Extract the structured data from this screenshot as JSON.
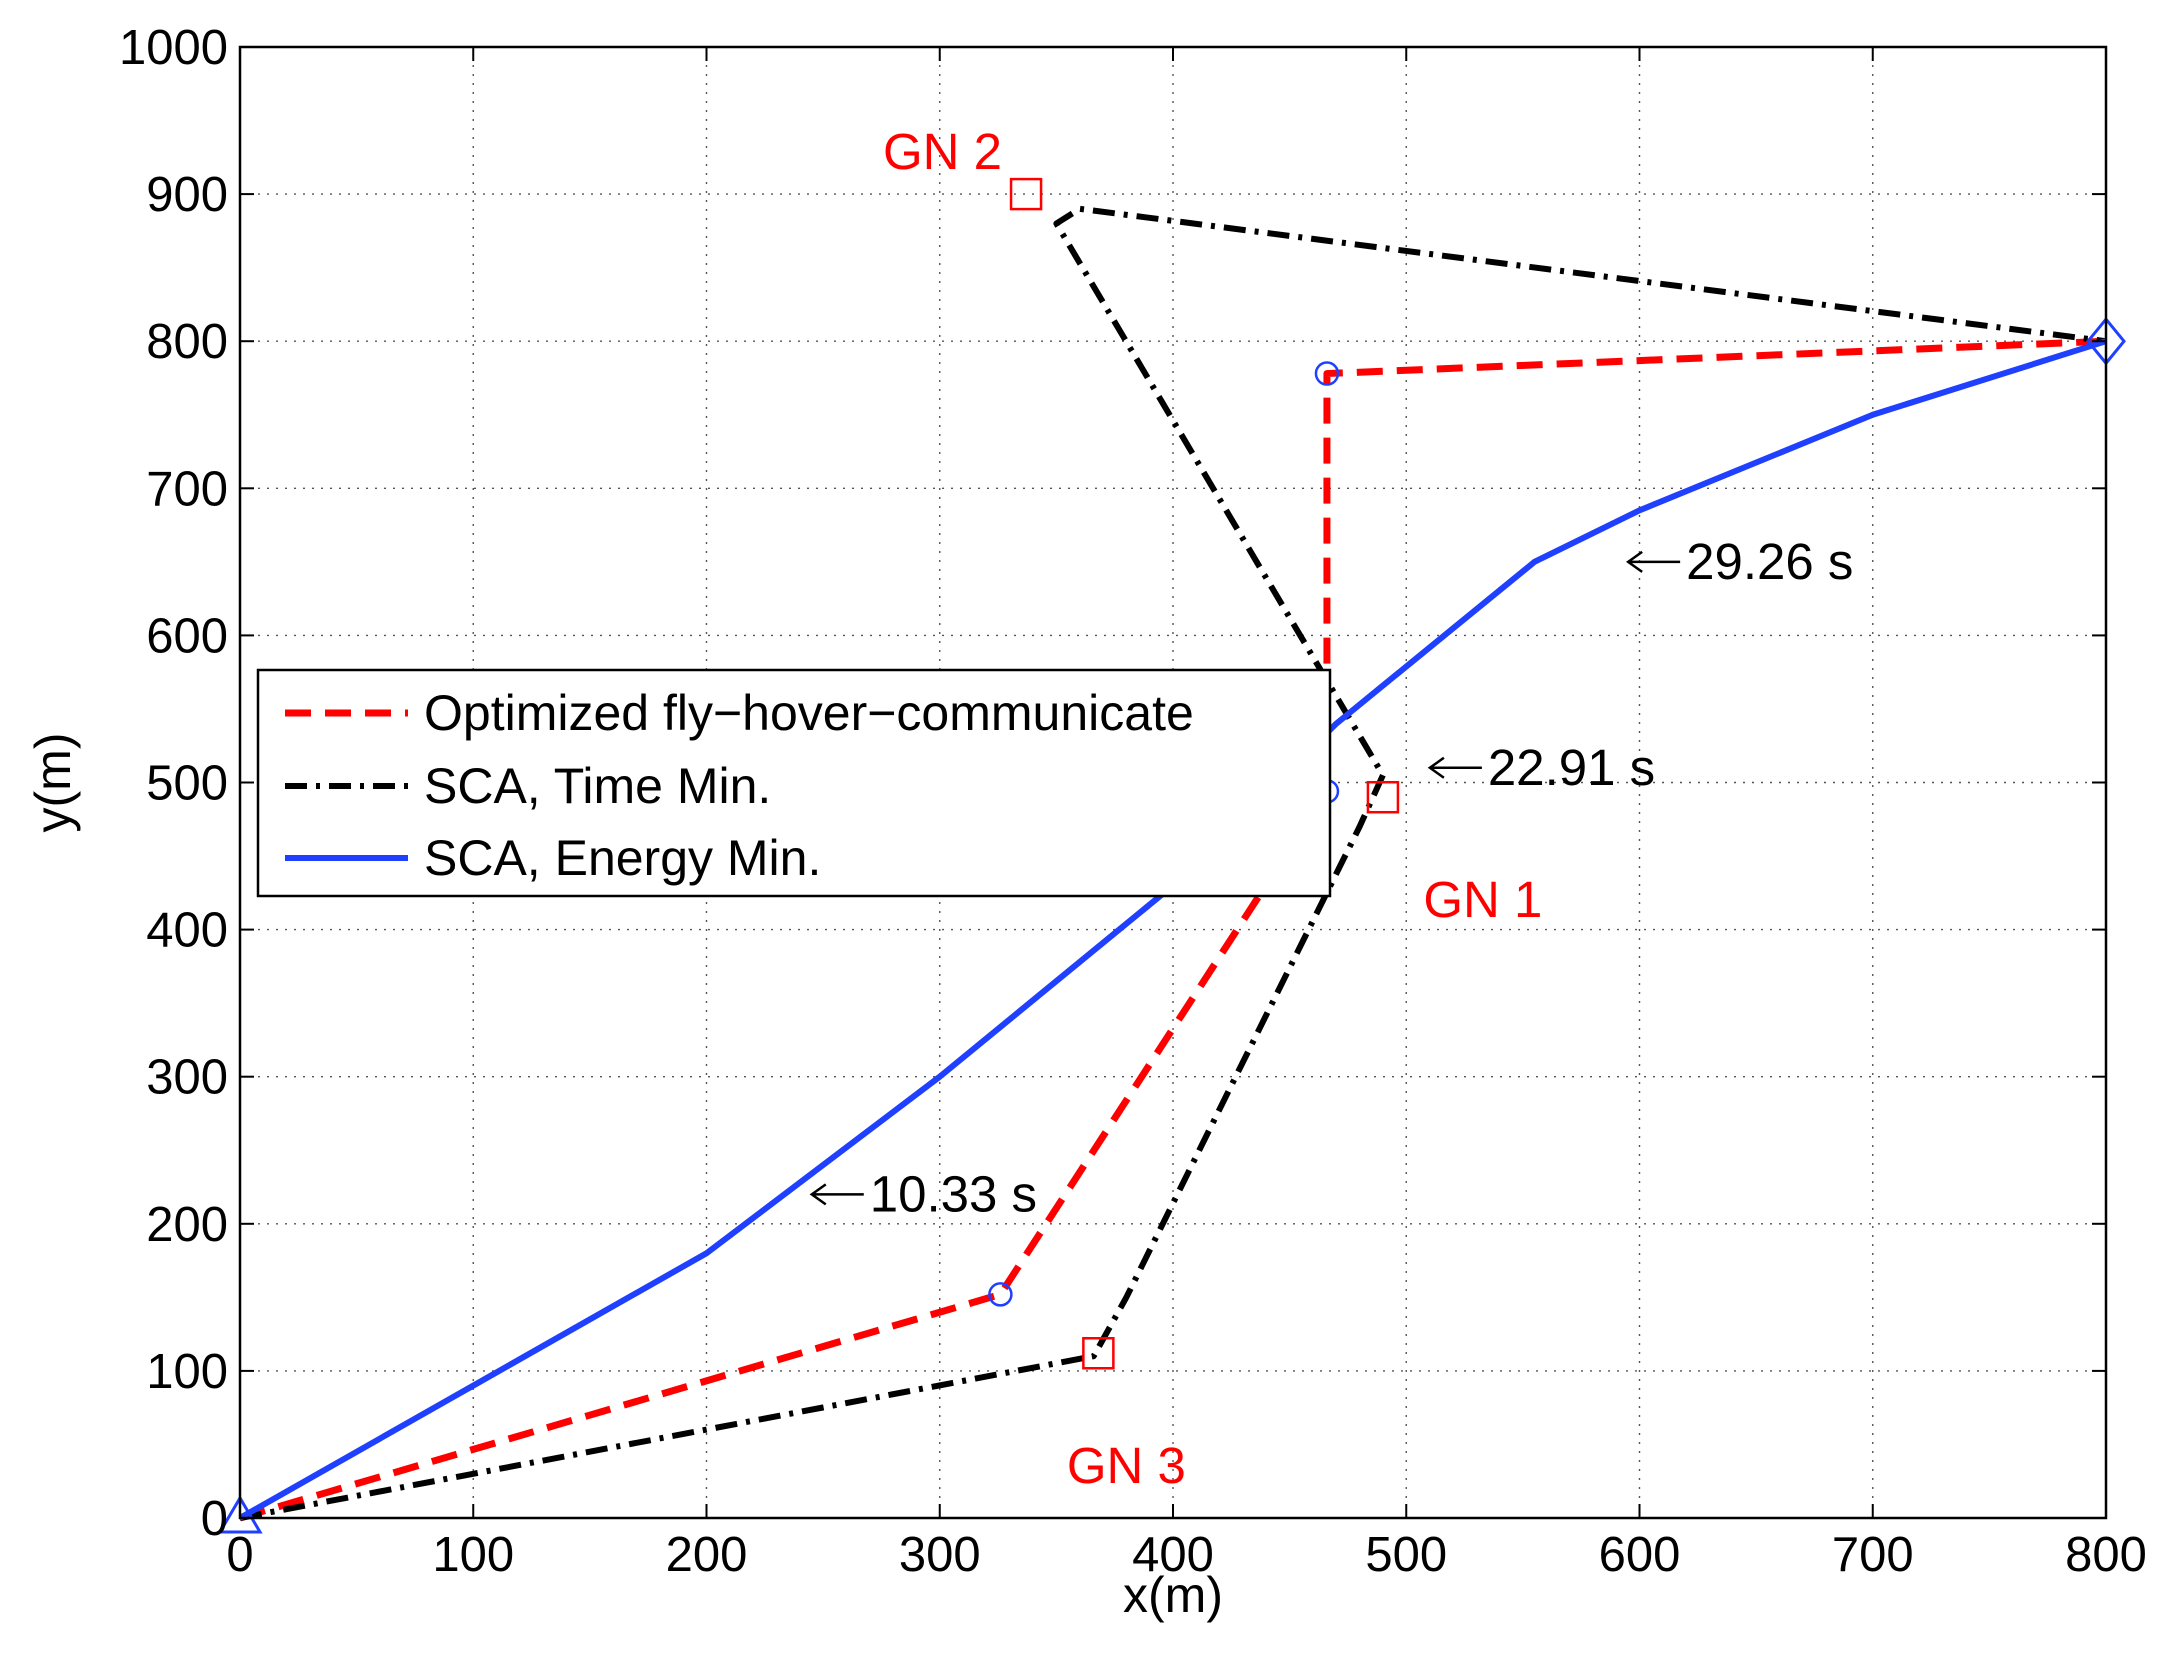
{
  "chart_data": {
    "type": "line",
    "xlabel": "x(m)",
    "ylabel": "y(m)",
    "xlim": [
      0,
      800
    ],
    "ylim": [
      0,
      1000
    ],
    "xticks": [
      0,
      100,
      200,
      300,
      400,
      500,
      600,
      700,
      800
    ],
    "yticks": [
      0,
      100,
      200,
      300,
      400,
      500,
      600,
      700,
      800,
      900,
      1000
    ],
    "grid": true,
    "legend_position": "center-left",
    "series": [
      {
        "name": "Optimized fly−hover−communicate",
        "color": "#ff0000",
        "style": "dashed",
        "x": [
          0,
          326,
          466,
          466,
          800
        ],
        "y": [
          0,
          152,
          494,
          778,
          800
        ]
      },
      {
        "name": "SCA, Time Min.",
        "color": "#000000",
        "style": "dashdot",
        "x": [
          0,
          366,
          380,
          480,
          490,
          350,
          360,
          800
        ],
        "y": [
          0,
          110,
          150,
          470,
          505,
          880,
          890,
          800
        ]
      },
      {
        "name": "SCA, Energy Min.",
        "color": "#2040ff",
        "style": "solid",
        "x": [
          0,
          100,
          200,
          300,
          400,
          470,
          555,
          600,
          700,
          800
        ],
        "y": [
          0,
          90,
          180,
          300,
          430,
          540,
          650,
          685,
          750,
          800
        ]
      }
    ],
    "ground_nodes": [
      {
        "label": "GN 1",
        "x": 490,
        "y": 490
      },
      {
        "label": "GN 2",
        "x": 337,
        "y": 900
      },
      {
        "label": "GN 3",
        "x": 368,
        "y": 112
      }
    ],
    "hover_points": [
      {
        "x": 326,
        "y": 152
      },
      {
        "x": 466,
        "y": 494
      },
      {
        "x": 466,
        "y": 778
      }
    ],
    "start_marker": {
      "shape": "triangle",
      "x": 0,
      "y": 0
    },
    "end_marker": {
      "shape": "diamond",
      "x": 800,
      "y": 800
    },
    "annotations": [
      {
        "text": "10.33 s",
        "x": 270,
        "y": 220
      },
      {
        "text": "22.91 s",
        "x": 535,
        "y": 510
      },
      {
        "text": "29.26 s",
        "x": 620,
        "y": 650
      }
    ],
    "colors": {
      "gn": "#ff0000",
      "hover": "#2040ff",
      "markers": "#2040ff"
    }
  }
}
